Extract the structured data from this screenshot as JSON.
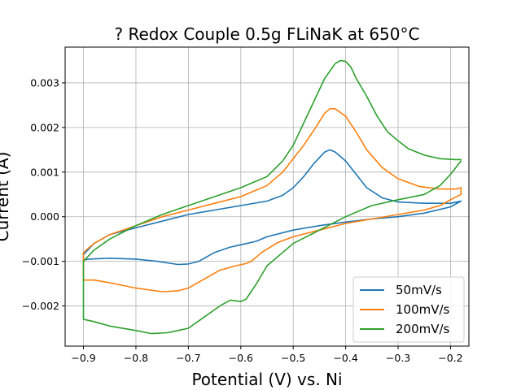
{
  "chart_data": {
    "type": "line",
    "title": "? Redox Couple 0.5g FLiNaK at 650°C",
    "xlabel": "Potential (V) vs. Ni",
    "ylabel": "Current (A)",
    "xlim": [
      -0.935,
      -0.165
    ],
    "ylim": [
      -0.0029,
      0.0038
    ],
    "xticks": [
      -0.9,
      -0.8,
      -0.7,
      -0.6,
      -0.5,
      -0.4,
      -0.3,
      -0.2
    ],
    "xtick_labels": [
      "−0.9",
      "−0.8",
      "−0.7",
      "−0.6",
      "−0.5",
      "−0.4",
      "−0.3",
      "−0.2"
    ],
    "yticks": [
      -0.002,
      -0.001,
      0.0,
      0.001,
      0.002,
      0.003
    ],
    "ytick_labels": [
      "−0.002",
      "−0.001",
      "0.000",
      "0.001",
      "0.002",
      "0.003"
    ],
    "grid": true,
    "legend_position": "lower-right",
    "series": [
      {
        "name": "50mV/s",
        "color": "#1f77b4",
        "points": [
          [
            -0.18,
            0.00035
          ],
          [
            -0.2,
            0.0003
          ],
          [
            -0.25,
            0.0003
          ],
          [
            -0.3,
            0.00033
          ],
          [
            -0.33,
            0.00042
          ],
          [
            -0.36,
            0.00065
          ],
          [
            -0.38,
            0.00095
          ],
          [
            -0.4,
            0.00125
          ],
          [
            -0.42,
            0.00145
          ],
          [
            -0.43,
            0.0015
          ],
          [
            -0.44,
            0.00145
          ],
          [
            -0.46,
            0.0012
          ],
          [
            -0.48,
            0.0009
          ],
          [
            -0.5,
            0.00065
          ],
          [
            -0.52,
            0.00048
          ],
          [
            -0.55,
            0.00035
          ],
          [
            -0.6,
            0.00025
          ],
          [
            -0.65,
            0.00015
          ],
          [
            -0.7,
            5e-05
          ],
          [
            -0.75,
            -0.0001
          ],
          [
            -0.8,
            -0.00025
          ],
          [
            -0.85,
            -0.0004
          ],
          [
            -0.88,
            -0.0006
          ],
          [
            -0.9,
            -0.00085
          ],
          [
            -0.9,
            -0.00097
          ],
          [
            -0.89,
            -0.00095
          ],
          [
            -0.85,
            -0.00093
          ],
          [
            -0.8,
            -0.00095
          ],
          [
            -0.76,
            -0.001
          ],
          [
            -0.72,
            -0.00107
          ],
          [
            -0.7,
            -0.00106
          ],
          [
            -0.68,
            -0.001
          ],
          [
            -0.65,
            -0.0008
          ],
          [
            -0.62,
            -0.00068
          ],
          [
            -0.6,
            -0.00063
          ],
          [
            -0.57,
            -0.00055
          ],
          [
            -0.55,
            -0.00045
          ],
          [
            -0.5,
            -0.0003
          ],
          [
            -0.45,
            -0.0002
          ],
          [
            -0.4,
            -0.00012
          ],
          [
            -0.35,
            -5e-05
          ],
          [
            -0.3,
            0.0
          ],
          [
            -0.25,
            8e-05
          ],
          [
            -0.2,
            0.00022
          ],
          [
            -0.18,
            0.00035
          ]
        ]
      },
      {
        "name": "100mV/s",
        "color": "#ff7f0e",
        "points": [
          [
            -0.18,
            0.00065
          ],
          [
            -0.19,
            0.00062
          ],
          [
            -0.22,
            0.00062
          ],
          [
            -0.26,
            0.00068
          ],
          [
            -0.3,
            0.00085
          ],
          [
            -0.33,
            0.0011
          ],
          [
            -0.36,
            0.0015
          ],
          [
            -0.38,
            0.0019
          ],
          [
            -0.4,
            0.00225
          ],
          [
            -0.42,
            0.00242
          ],
          [
            -0.43,
            0.00242
          ],
          [
            -0.44,
            0.00232
          ],
          [
            -0.46,
            0.00195
          ],
          [
            -0.48,
            0.0016
          ],
          [
            -0.5,
            0.0013
          ],
          [
            -0.52,
            0.001
          ],
          [
            -0.55,
            0.0007
          ],
          [
            -0.58,
            0.00055
          ],
          [
            -0.6,
            0.00045
          ],
          [
            -0.65,
            0.0003
          ],
          [
            -0.7,
            0.00015
          ],
          [
            -0.75,
            0.0
          ],
          [
            -0.8,
            -0.0002
          ],
          [
            -0.85,
            -0.0004
          ],
          [
            -0.88,
            -0.0006
          ],
          [
            -0.9,
            -0.0008
          ],
          [
            -0.9,
            -0.00142
          ],
          [
            -0.88,
            -0.00142
          ],
          [
            -0.85,
            -0.00148
          ],
          [
            -0.8,
            -0.0016
          ],
          [
            -0.75,
            -0.00168
          ],
          [
            -0.72,
            -0.00166
          ],
          [
            -0.7,
            -0.0016
          ],
          [
            -0.67,
            -0.0014
          ],
          [
            -0.64,
            -0.0012
          ],
          [
            -0.61,
            -0.0011
          ],
          [
            -0.59,
            -0.00105
          ],
          [
            -0.58,
            -0.001
          ],
          [
            -0.56,
            -0.0008
          ],
          [
            -0.53,
            -0.00058
          ],
          [
            -0.5,
            -0.00045
          ],
          [
            -0.45,
            -0.0003
          ],
          [
            -0.4,
            -0.00015
          ],
          [
            -0.35,
            -5e-05
          ],
          [
            -0.3,
            5e-05
          ],
          [
            -0.25,
            0.00015
          ],
          [
            -0.22,
            0.00025
          ],
          [
            -0.2,
            0.00038
          ],
          [
            -0.18,
            0.0005
          ],
          [
            -0.18,
            0.00065
          ]
        ]
      },
      {
        "name": "200mV/s",
        "color": "#2ca02c",
        "points": [
          [
            -0.18,
            0.00128
          ],
          [
            -0.19,
            0.00128
          ],
          [
            -0.22,
            0.0013
          ],
          [
            -0.25,
            0.00138
          ],
          [
            -0.28,
            0.00152
          ],
          [
            -0.3,
            0.0017
          ],
          [
            -0.32,
            0.0019
          ],
          [
            -0.34,
            0.00225
          ],
          [
            -0.36,
            0.0027
          ],
          [
            -0.38,
            0.0031
          ],
          [
            -0.39,
            0.00335
          ],
          [
            -0.4,
            0.00348
          ],
          [
            -0.41,
            0.0035
          ],
          [
            -0.42,
            0.00343
          ],
          [
            -0.44,
            0.0031
          ],
          [
            -0.46,
            0.0026
          ],
          [
            -0.48,
            0.0021
          ],
          [
            -0.5,
            0.0016
          ],
          [
            -0.52,
            0.00125
          ],
          [
            -0.55,
            0.0009
          ],
          [
            -0.58,
            0.00075
          ],
          [
            -0.6,
            0.00065
          ],
          [
            -0.65,
            0.00045
          ],
          [
            -0.7,
            0.00025
          ],
          [
            -0.75,
            5e-05
          ],
          [
            -0.8,
            -0.0002
          ],
          [
            -0.85,
            -0.0005
          ],
          [
            -0.88,
            -0.00075
          ],
          [
            -0.9,
            -0.001
          ],
          [
            -0.9,
            -0.0023
          ],
          [
            -0.88,
            -0.00235
          ],
          [
            -0.85,
            -0.00245
          ],
          [
            -0.8,
            -0.00255
          ],
          [
            -0.77,
            -0.00262
          ],
          [
            -0.74,
            -0.0026
          ],
          [
            -0.72,
            -0.00255
          ],
          [
            -0.7,
            -0.0025
          ],
          [
            -0.67,
            -0.00225
          ],
          [
            -0.64,
            -0.002
          ],
          [
            -0.62,
            -0.00187
          ],
          [
            -0.6,
            -0.0019
          ],
          [
            -0.59,
            -0.00185
          ],
          [
            -0.57,
            -0.0015
          ],
          [
            -0.55,
            -0.0011
          ],
          [
            -0.52,
            -0.0008
          ],
          [
            -0.5,
            -0.0006
          ],
          [
            -0.45,
            -0.0003
          ],
          [
            -0.4,
            0.0
          ],
          [
            -0.35,
            0.00025
          ],
          [
            -0.3,
            0.00038
          ],
          [
            -0.25,
            0.0005
          ],
          [
            -0.22,
            0.0007
          ],
          [
            -0.2,
            0.00095
          ],
          [
            -0.18,
            0.00125
          ]
        ]
      }
    ]
  }
}
